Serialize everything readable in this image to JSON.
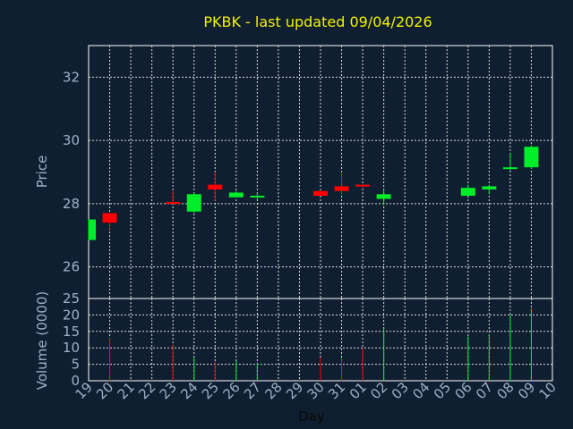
{
  "colors": {
    "background": "#0f1e30",
    "up": "#00ee2a",
    "down": "#ff0000",
    "grid": "#ffffff",
    "title": "#f2f200",
    "text": "#9fb0c8"
  },
  "chart_data": [
    {
      "type": "candlestick",
      "title": "PKBK - last updated 09/04/2026",
      "ylabel": "Price",
      "xlabel": "",
      "ylim": [
        25,
        33
      ],
      "yticks": [
        26,
        28,
        30,
        32
      ],
      "grid": true,
      "categories": [
        "19",
        "20",
        "21",
        "22",
        "23",
        "24",
        "25",
        "26",
        "27",
        "28",
        "29",
        "30",
        "31",
        "01",
        "02",
        "03",
        "04",
        "05",
        "06",
        "07",
        "08",
        "09",
        "10"
      ],
      "candles": [
        {
          "day": "19",
          "open": 26.85,
          "high": 27.5,
          "low": 26.85,
          "close": 27.5
        },
        {
          "day": "20",
          "open": 27.7,
          "high": 27.7,
          "low": 27.2,
          "close": 27.4
        },
        {
          "day": "23",
          "open": 28.05,
          "high": 28.4,
          "low": 28.0,
          "close": 28.0
        },
        {
          "day": "24",
          "open": 27.75,
          "high": 28.35,
          "low": 27.7,
          "close": 28.3
        },
        {
          "day": "25",
          "open": 28.6,
          "high": 29.0,
          "low": 28.1,
          "close": 28.45
        },
        {
          "day": "26",
          "open": 28.2,
          "high": 28.4,
          "low": 28.2,
          "close": 28.35
        },
        {
          "day": "27",
          "open": 28.2,
          "high": 28.35,
          "low": 28.1,
          "close": 28.25
        },
        {
          "day": "30",
          "open": 28.4,
          "high": 28.4,
          "low": 28.25,
          "close": 28.25
        },
        {
          "day": "31",
          "open": 28.55,
          "high": 29.0,
          "low": 28.3,
          "close": 28.4
        },
        {
          "day": "01",
          "open": 28.6,
          "high": 28.6,
          "low": 28.5,
          "close": 28.55
        },
        {
          "day": "02",
          "open": 28.15,
          "high": 28.45,
          "low": 27.95,
          "close": 28.3
        },
        {
          "day": "06",
          "open": 28.25,
          "high": 28.6,
          "low": 28.25,
          "close": 28.5
        },
        {
          "day": "07",
          "open": 28.45,
          "high": 28.6,
          "low": 28.3,
          "close": 28.55
        },
        {
          "day": "08",
          "open": 29.1,
          "high": 29.6,
          "low": 29.05,
          "close": 29.15
        },
        {
          "day": "09",
          "open": 29.15,
          "high": 29.85,
          "low": 29.1,
          "close": 29.8
        }
      ]
    },
    {
      "type": "bar",
      "ylabel": "Volume (0000)",
      "xlabel": "Day",
      "ylim": [
        0,
        25
      ],
      "yticks": [
        0,
        5,
        10,
        15,
        20,
        25
      ],
      "grid": true,
      "categories": [
        "19",
        "20",
        "21",
        "22",
        "23",
        "24",
        "25",
        "26",
        "27",
        "28",
        "29",
        "30",
        "31",
        "01",
        "02",
        "03",
        "04",
        "05",
        "06",
        "07",
        "08",
        "09",
        "10"
      ],
      "volumes": [
        {
          "day": "20",
          "value": 13,
          "dir": "down"
        },
        {
          "day": "23",
          "value": 11,
          "dir": "down"
        },
        {
          "day": "24",
          "value": 7,
          "dir": "up"
        },
        {
          "day": "25",
          "value": 6,
          "dir": "down"
        },
        {
          "day": "26",
          "value": 6,
          "dir": "up"
        },
        {
          "day": "27",
          "value": 5.5,
          "dir": "up"
        },
        {
          "day": "30",
          "value": 7,
          "dir": "down"
        },
        {
          "day": "31",
          "value": 7,
          "dir": "down"
        },
        {
          "day": "01",
          "value": 10,
          "dir": "down"
        },
        {
          "day": "02",
          "value": 16,
          "dir": "up"
        },
        {
          "day": "06",
          "value": 13.5,
          "dir": "up"
        },
        {
          "day": "07",
          "value": 14,
          "dir": "up"
        },
        {
          "day": "08",
          "value": 20,
          "dir": "up"
        },
        {
          "day": "09",
          "value": 22,
          "dir": "up"
        }
      ]
    }
  ]
}
